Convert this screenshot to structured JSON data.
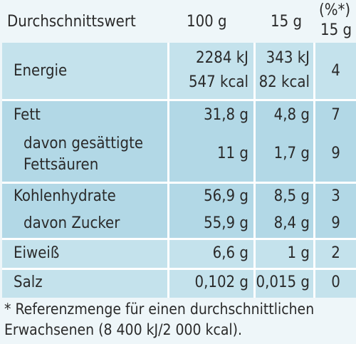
{
  "header": {
    "label": "Durchschnittswert",
    "col_100": "100 g",
    "col_15": "15 g",
    "col_pct_1": "(%*)",
    "col_pct_2": "15 g"
  },
  "rows": {
    "energie": {
      "name": "Energie",
      "kj_100": "2284 kJ",
      "kcal_100": "547 kcal",
      "kj_15": "343 kJ",
      "kcal_15": "82 kcal",
      "pct": "4"
    },
    "fett": {
      "name": "Fett",
      "v100": "31,8 g",
      "v15": "4,8 g",
      "pct": "7"
    },
    "gesaettigte": {
      "name_1": "davon gesättigte",
      "name_2": "Fettsäuren",
      "v100": "11 g",
      "v15": "1,7 g",
      "pct": "9"
    },
    "kohlenhydrate": {
      "name": "Kohlenhydrate",
      "v100": "56,9 g",
      "v15": "8,5 g",
      "pct": "3"
    },
    "zucker": {
      "name": "davon Zucker",
      "v100": "55,9 g",
      "v15": "8,4 g",
      "pct": "9"
    },
    "eiweiss": {
      "name": "Eiweiß",
      "v100": "6,6 g",
      "v15": "1 g",
      "pct": "2"
    },
    "salz": {
      "name": "Salz",
      "v100": "0,102 g",
      "v15": "0,015 g",
      "pct": "0"
    }
  },
  "footnote": {
    "line1": "* Referenzmenge für einen durchschnittlichen",
    "line2": "Erwachsenen (8 400 kJ/2 000 kcal)."
  },
  "colors": {
    "panel": "#c4e2ec",
    "panel_shaded": "#b2d8e6",
    "rule": "#ffffff",
    "text": "#2a2a2a"
  }
}
